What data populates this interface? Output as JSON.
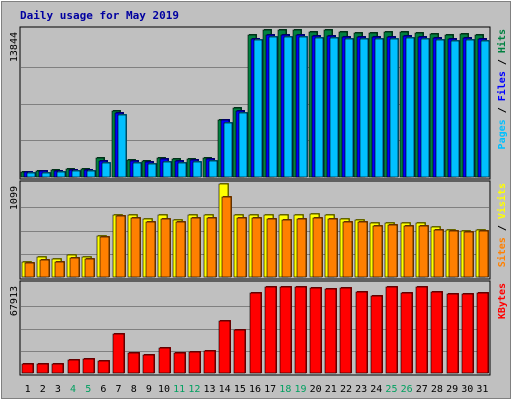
{
  "chart_data": {
    "type": "bar",
    "title": "Daily usage for May 2019",
    "categories": [
      "1",
      "2",
      "3",
      "4",
      "5",
      "6",
      "7",
      "8",
      "9",
      "10",
      "11",
      "12",
      "13",
      "14",
      "15",
      "16",
      "17",
      "18",
      "19",
      "20",
      "21",
      "22",
      "23",
      "24",
      "25",
      "26",
      "27",
      "28",
      "29",
      "30",
      "31"
    ],
    "weekend_days": [
      "4",
      "5",
      "11",
      "12",
      "18",
      "19",
      "25",
      "26"
    ],
    "panels": [
      {
        "name": "top",
        "ymax_label": "13844",
        "ymax": 13844,
        "side_label": [
          "Pages",
          " / ",
          "Files",
          " / ",
          "Hits"
        ],
        "series": [
          {
            "name": "Hits",
            "color": "#008040",
            "values": [
              500,
              600,
              650,
              800,
              800,
              1800,
              6200,
              1600,
              1500,
              1750,
              1650,
              1700,
              1800,
              5400,
              6500,
              13400,
              13800,
              13800,
              13800,
              13700,
              13800,
              13700,
              13600,
              13600,
              13650,
              13700,
              13600,
              13500,
              13400,
              13500,
              13400
            ]
          },
          {
            "name": "Files",
            "color": "#0000ff",
            "values": [
              430,
              520,
              560,
              700,
              700,
              1500,
              6000,
              1500,
              1400,
              1650,
              1550,
              1600,
              1700,
              5400,
              6200,
              13000,
              13400,
              13350,
              13400,
              13300,
              13300,
              13200,
              13200,
              13150,
              13200,
              13300,
              13200,
              13100,
              13000,
              13100,
              13000
            ]
          },
          {
            "name": "Pages",
            "color": "#00c0ff",
            "values": [
              330,
              420,
              460,
              560,
              560,
              1300,
              5800,
              1300,
              1200,
              1400,
              1300,
              1400,
              1500,
              5100,
              6000,
              12900,
              13200,
              13200,
              13200,
              13100,
              13100,
              13000,
              13000,
              13000,
              13000,
              13100,
              13000,
              12900,
              12800,
              12900,
              12800
            ]
          }
        ]
      },
      {
        "name": "middle",
        "ymax_label": "1099",
        "ymax": 1099,
        "side_label": [
          "Sites",
          " / ",
          "Visits"
        ],
        "series": [
          {
            "name": "Visits",
            "color": "#ffff00",
            "values": [
              180,
              240,
              210,
              260,
              240,
              480,
              730,
              730,
              680,
              730,
              670,
              730,
              730,
              1099,
              730,
              730,
              730,
              730,
              730,
              740,
              730,
              680,
              670,
              640,
              640,
              640,
              640,
              590,
              560,
              540,
              560
            ]
          },
          {
            "name": "Sites",
            "color": "#ff8000",
            "values": [
              160,
              200,
              180,
              220,
              210,
              470,
              720,
              700,
              650,
              680,
              650,
              700,
              700,
              940,
              700,
              700,
              680,
              670,
              680,
              700,
              680,
              650,
              650,
              600,
              610,
              600,
              600,
              560,
              540,
              530,
              540
            ]
          }
        ]
      },
      {
        "name": "bottom",
        "ymax_label": "67913",
        "ymax": 67913,
        "side_label": [
          "KBytes"
        ],
        "series": [
          {
            "name": "KBytes",
            "color": "#ff0000",
            "values": [
              6500,
              6500,
              7000,
              10000,
              10500,
              9500,
              30000,
              15000,
              13500,
              19000,
              15000,
              16000,
              16500,
              40000,
              33000,
              61000,
              66000,
              65500,
              65500,
              64500,
              64000,
              64500,
              62000,
              58500,
              66000,
              61000,
              66000,
              62000,
              60000,
              60000,
              61000
            ]
          }
        ]
      }
    ]
  },
  "colors": {
    "background": "#c0c0c0",
    "plot_background": "#c0c0c0",
    "title": "#0000a0",
    "hits": "#008040",
    "files": "#0000ff",
    "pages": "#00c0ff",
    "visits": "#ffff00",
    "sites": "#ff8000",
    "kbytes": "#ff0000",
    "weekend_label": "#00a060",
    "weekday_label": "#000000"
  }
}
